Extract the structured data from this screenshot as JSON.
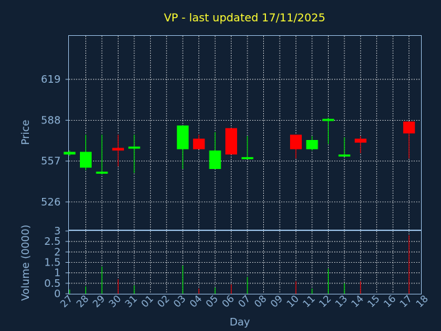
{
  "chart_data": {
    "type": "candlestick",
    "title": "VP - last updated 17/11/2025",
    "price_panel": {
      "ylabel": "Price",
      "yticks": [
        526,
        557,
        588,
        619
      ],
      "ylim": [
        505,
        652
      ]
    },
    "volume_panel": {
      "ylabel": "Volume (0000)",
      "yticks": [
        "0",
        "0.5",
        "1",
        "1.5",
        "2",
        "2.5",
        "3"
      ],
      "ylim": [
        0,
        3
      ]
    },
    "xlabel": "Day",
    "xticks": [
      "27",
      "28",
      "29",
      "30",
      "31",
      "01",
      "02",
      "03",
      "04",
      "05",
      "06",
      "07",
      "08",
      "09",
      "10",
      "11",
      "12",
      "13",
      "14",
      "15",
      "16",
      "17",
      "18"
    ],
    "grid": true,
    "up_color": "#00ff00",
    "down_color": "#ff0000",
    "candles": [
      {
        "day": "27",
        "open": 562,
        "close": 564,
        "high": 565,
        "low": 561,
        "volume": 0.2
      },
      {
        "day": "28",
        "open": 552,
        "close": 564,
        "high": 577,
        "low": 550,
        "volume": 0.35
      },
      {
        "day": "29",
        "open": 548,
        "close": 549,
        "high": 577,
        "low": 547,
        "volume": 1.3
      },
      {
        "day": "30",
        "open": 567,
        "close": 565,
        "high": 577,
        "low": 553,
        "volume": 0.7
      },
      {
        "day": "31",
        "open": 567,
        "close": 568,
        "high": 577,
        "low": 548,
        "volume": 0.4
      },
      {
        "day": "03",
        "open": 566,
        "close": 584,
        "high": 584,
        "low": 551,
        "volume": 1.35
      },
      {
        "day": "04",
        "open": 574,
        "close": 566,
        "high": 577,
        "low": 566,
        "volume": 0.25
      },
      {
        "day": "05",
        "open": 551,
        "close": 565,
        "high": 579,
        "low": 551,
        "volume": 0.3
      },
      {
        "day": "06",
        "open": 582,
        "close": 562,
        "high": 582,
        "low": 562,
        "volume": 0.45
      },
      {
        "day": "07",
        "open": 559,
        "close": 560,
        "high": 576,
        "low": 559,
        "volume": 0.8
      },
      {
        "day": "10",
        "open": 577,
        "close": 566,
        "high": 577,
        "low": 559,
        "volume": 0.6
      },
      {
        "day": "11",
        "open": 566,
        "close": 573,
        "high": 576,
        "low": 565,
        "volume": 0.25
      },
      {
        "day": "12",
        "open": 588,
        "close": 589,
        "high": 590,
        "low": 570,
        "volume": 1.2
      },
      {
        "day": "13",
        "open": 561,
        "close": 562,
        "high": 575,
        "low": 561,
        "volume": 0.5
      },
      {
        "day": "14",
        "open": 574,
        "close": 571,
        "high": 576,
        "low": 563,
        "volume": 0.6
      },
      {
        "day": "17",
        "open": 587,
        "close": 578,
        "high": 587,
        "low": 559,
        "volume": 2.8
      }
    ]
  }
}
